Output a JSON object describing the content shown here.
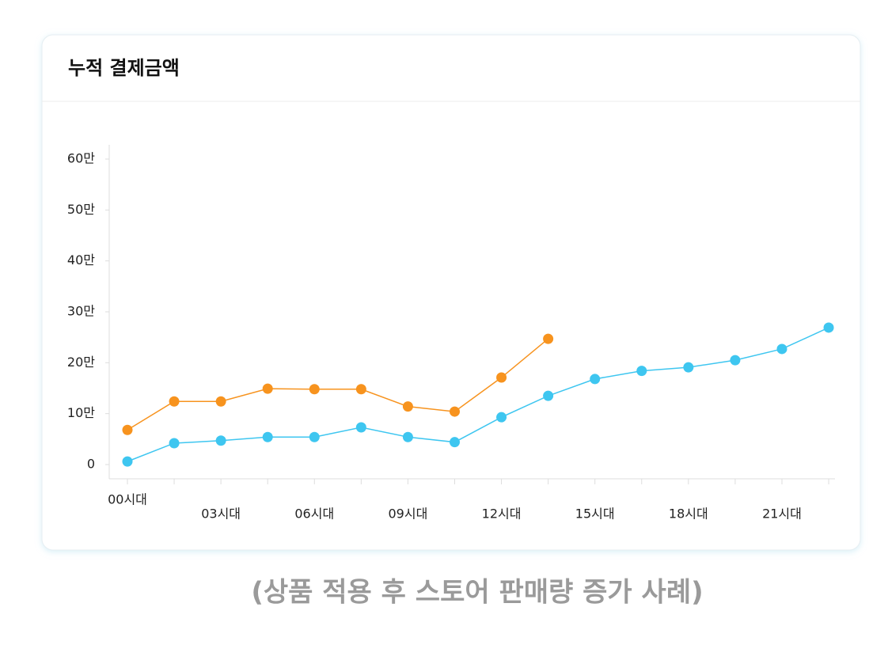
{
  "chart_data": {
    "type": "line",
    "title": "누적 결제금액",
    "caption": "(상품 적용 후 스토어 판매량 증가 사례)",
    "categories": [
      "00시대",
      null,
      "03시대",
      null,
      "06시대",
      null,
      "09시대",
      null,
      "12시대",
      null,
      "15시대",
      null,
      "18시대",
      null,
      "21시대",
      null
    ],
    "series": [
      {
        "color": "#f7931e",
        "values": [
          68000,
          124000,
          124000,
          149000,
          148000,
          148000,
          114000,
          104000,
          171000,
          247000,
          null,
          null,
          null,
          null,
          null,
          null
        ]
      },
      {
        "color": "#3ec6f0",
        "values": [
          6000,
          42000,
          47000,
          54000,
          54000,
          73000,
          54000,
          44000,
          93000,
          135000,
          168000,
          184000,
          191000,
          205000,
          227000,
          269000
        ]
      }
    ],
    "ylim": [
      -28000,
      628000
    ],
    "yticks": [
      0,
      {
        "value": 100000,
        "label": "10만"
      },
      {
        "value": 200000,
        "label": "20만"
      },
      {
        "value": 300000,
        "label": "30만"
      },
      {
        "value": 400000,
        "label": "40만"
      },
      {
        "value": 500000,
        "label": "50만"
      },
      {
        "value": 600000,
        "label": "60만"
      }
    ],
    "grid": false
  }
}
